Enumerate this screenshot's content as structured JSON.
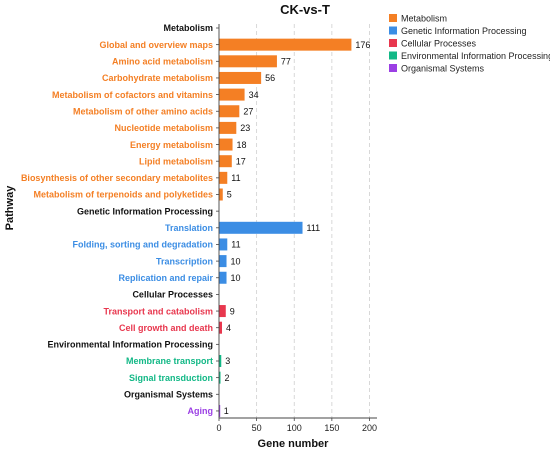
{
  "chart_data": {
    "type": "bar",
    "orientation": "horizontal",
    "title": "CK-vs-T",
    "xlabel": "Gene number",
    "ylabel": "Pathway",
    "xlim": [
      0,
      210
    ],
    "xticks": [
      0,
      50,
      100,
      150,
      200
    ],
    "grid": true,
    "legend_position": "top-right",
    "groups": [
      {
        "name": "Metabolism",
        "color": "#F47F24"
      },
      {
        "name": "Genetic Information Processing",
        "color": "#3B8DE4"
      },
      {
        "name": "Cellular Processes",
        "color": "#E8374E"
      },
      {
        "name": "Environmental Information Processing",
        "color": "#12B886"
      },
      {
        "name": "Organismal Systems",
        "color": "#9B3FE4"
      }
    ],
    "rows": [
      {
        "label": "Metabolism",
        "header": true
      },
      {
        "label": "Global and overview maps",
        "group": 0,
        "value": 176
      },
      {
        "label": "Amino acid metabolism",
        "group": 0,
        "value": 77
      },
      {
        "label": "Carbohydrate metabolism",
        "group": 0,
        "value": 56
      },
      {
        "label": "Metabolism of cofactors and vitamins",
        "group": 0,
        "value": 34
      },
      {
        "label": "Metabolism of other amino acids",
        "group": 0,
        "value": 27
      },
      {
        "label": "Nucleotide metabolism",
        "group": 0,
        "value": 23
      },
      {
        "label": "Energy metabolism",
        "group": 0,
        "value": 18
      },
      {
        "label": "Lipid metabolism",
        "group": 0,
        "value": 17
      },
      {
        "label": "Biosynthesis of other secondary metabolites",
        "group": 0,
        "value": 11
      },
      {
        "label": "Metabolism of terpenoids and polyketides",
        "group": 0,
        "value": 5
      },
      {
        "label": "Genetic Information Processing",
        "header": true
      },
      {
        "label": "Translation",
        "group": 1,
        "value": 111
      },
      {
        "label": "Folding, sorting and degradation",
        "group": 1,
        "value": 11
      },
      {
        "label": "Transcription",
        "group": 1,
        "value": 10
      },
      {
        "label": "Replication and repair",
        "group": 1,
        "value": 10
      },
      {
        "label": "Cellular Processes",
        "header": true
      },
      {
        "label": "Transport and catabolism",
        "group": 2,
        "value": 9
      },
      {
        "label": "Cell growth and death",
        "group": 2,
        "value": 4
      },
      {
        "label": "Environmental Information Processing",
        "header": true
      },
      {
        "label": "Membrane transport",
        "group": 3,
        "value": 3
      },
      {
        "label": "Signal transduction",
        "group": 3,
        "value": 2
      },
      {
        "label": "Organismal Systems",
        "header": true
      },
      {
        "label": "Aging",
        "group": 4,
        "value": 1
      }
    ]
  }
}
